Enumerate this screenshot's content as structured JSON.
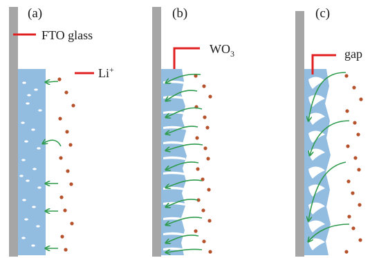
{
  "panels": [
    {
      "label": "(a)"
    },
    {
      "label": "(b)"
    },
    {
      "label": "(c)"
    }
  ],
  "annotations": {
    "fto": "FTO glass",
    "li_base": "Li",
    "li_sup": "+",
    "wo_base": "WO",
    "wo_sub": "3",
    "gap": "gap"
  },
  "colors": {
    "fto_glass": "#a6a6a6",
    "wo3_film": "#93bde0",
    "li_ion": "#b5522c",
    "arrow": "#2e9a4c",
    "leader_line": "#e02020"
  }
}
